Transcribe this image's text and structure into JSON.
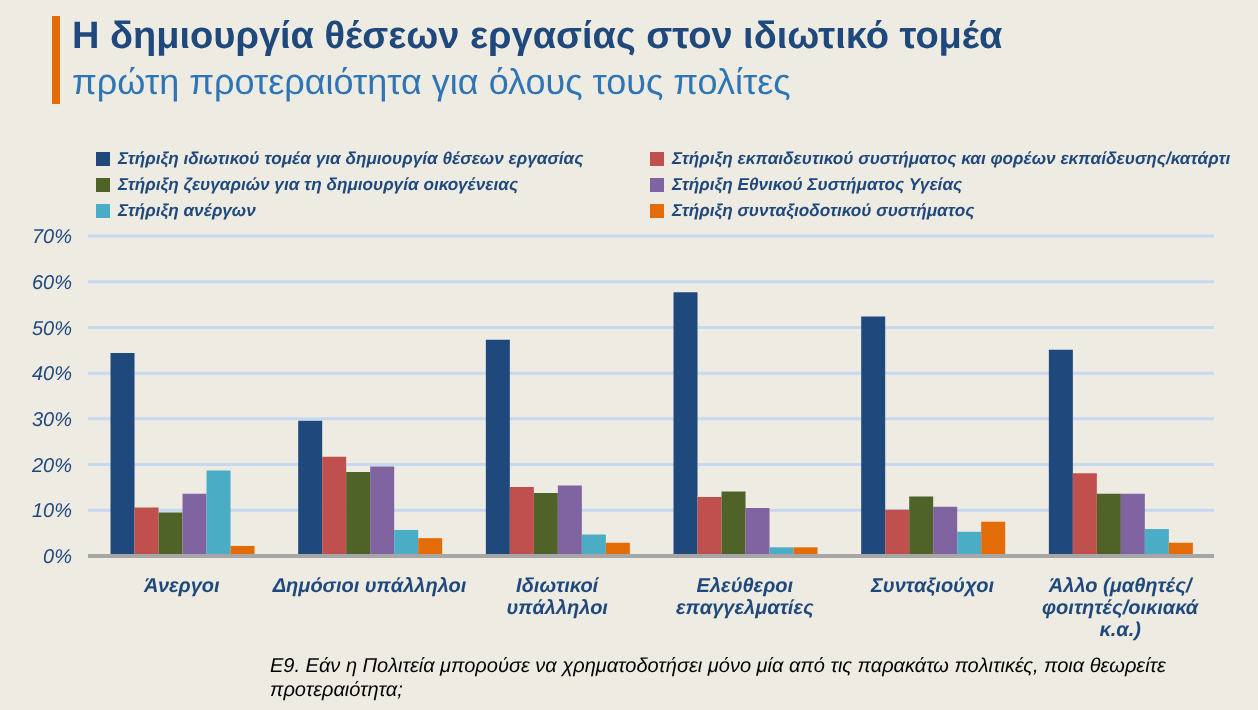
{
  "chart_data": {
    "type": "bar",
    "title": "Η δημιουργία θέσεων εργασίας στον ιδιωτικό τομέα",
    "subtitle": "πρώτη προτεραιότητα για όλους τους πολίτες",
    "annotations": [
      "Ε9. Εάν η Πολιτεία μπορούσε να χρηματοδοτήσει μόνο μία από τις παρακάτω πολιτικές, ποια θεωρείτε προτεραιότητα;"
    ],
    "categories": [
      "Άνεργοι",
      "Δημόσιοι υπάλληλοι",
      "Ιδιωτικοί υπάλληλοι",
      "Ελεύθεροι επαγγελματίες",
      "Συνταξιούχοι",
      "Άλλο (μαθητές/φοιτητές/οικιακά κ.α.)"
    ],
    "series": [
      {
        "name": "Στήριξη ιδιωτικού τομέα για δημιουργία θέσεων εργασίας",
        "color": "#1f497d",
        "values": [
          44.4,
          29.6,
          47.3,
          57.7,
          52.4,
          45.1
        ]
      },
      {
        "name": "Στήριξη εκπαιδευτικού συστήματος και φορέων εκπαίδευσης/κατάρτι",
        "color": "#c0504d",
        "values": [
          10.6,
          21.7,
          15.1,
          12.9,
          10.1,
          18.1
        ]
      },
      {
        "name": "Στήριξη ζευγαριών για τη δημιουργία οικογένειας",
        "color": "#4f6228",
        "values": [
          9.5,
          18.4,
          13.8,
          14.1,
          13.0,
          13.6
        ]
      },
      {
        "name": "Στήριξη Εθνικού Συστήματος Υγείας",
        "color": "#8064a2",
        "values": [
          13.6,
          19.6,
          15.4,
          10.5,
          10.8,
          13.6
        ]
      },
      {
        "name": "Στήριξη ανέργων",
        "color": "#4bacc6",
        "values": [
          18.7,
          5.7,
          4.7,
          1.9,
          5.3,
          5.9
        ]
      },
      {
        "name": "Στήριξη συνταξιοδοτικού συστήματος",
        "color": "#e36c09",
        "values": [
          2.2,
          3.9,
          2.9,
          1.9,
          7.5,
          2.9
        ]
      }
    ],
    "ylim": [
      0,
      70
    ],
    "yticks": [
      {
        "value": 0,
        "label": "0%"
      },
      {
        "value": 10,
        "label": "10%"
      },
      {
        "value": 20,
        "label": "20%"
      },
      {
        "value": 30,
        "label": "30%"
      },
      {
        "value": 40,
        "label": "40%"
      },
      {
        "value": 50,
        "label": "50%"
      },
      {
        "value": 60,
        "label": "60%"
      },
      {
        "value": 70,
        "label": "70%"
      }
    ],
    "grid": "y",
    "legend": "top"
  }
}
